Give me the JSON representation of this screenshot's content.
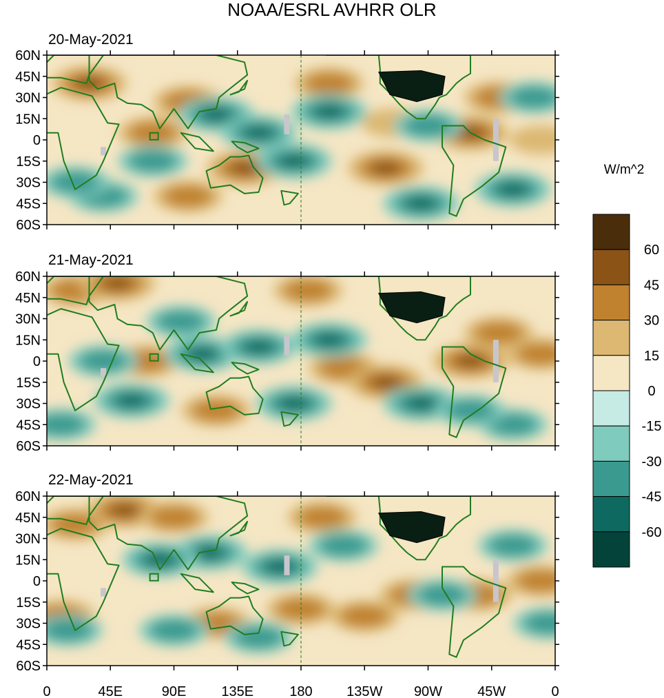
{
  "figure": {
    "title": "NOAA/ESRL AVHRR OLR",
    "units": "W/m^2"
  },
  "panels": [
    {
      "date": "20-May-2021"
    },
    {
      "date": "21-May-2021"
    },
    {
      "date": "22-May-2021"
    }
  ],
  "lat_ticks": [
    {
      "lat": 60,
      "label": "60N"
    },
    {
      "lat": 45,
      "label": "45N"
    },
    {
      "lat": 30,
      "label": "30N"
    },
    {
      "lat": 15,
      "label": "15N"
    },
    {
      "lat": 0,
      "label": "0"
    },
    {
      "lat": -15,
      "label": "15S"
    },
    {
      "lat": -30,
      "label": "30S"
    },
    {
      "lat": -45,
      "label": "45S"
    },
    {
      "lat": -60,
      "label": "60S"
    }
  ],
  "lon_ticks": [
    {
      "lon": 0,
      "label": "0"
    },
    {
      "lon": 45,
      "label": "45E"
    },
    {
      "lon": 90,
      "label": "90E"
    },
    {
      "lon": 135,
      "label": "135E"
    },
    {
      "lon": 180,
      "label": "180"
    },
    {
      "lon": 225,
      "label": "135W"
    },
    {
      "lon": 270,
      "label": "90W"
    },
    {
      "lon": 315,
      "label": "45W"
    },
    {
      "lon": 360,
      "label": "0"
    }
  ],
  "colorbar": {
    "colors": [
      "#4a2e0c",
      "#8c5316",
      "#c0822f",
      "#dcb872",
      "#f5e6c4",
      "#c6ebe4",
      "#7fcbbd",
      "#3a9a90",
      "#0e6a60",
      "#04433a"
    ],
    "labels": [
      "60",
      "45",
      "30",
      "15",
      "0",
      "-15",
      "-30",
      "-45",
      "-60"
    ]
  },
  "colors": {
    "coast": "#1e7d1e",
    "missing": "#c8c6cc",
    "background": "#f5e6c4"
  },
  "anomalies": [
    [
      {
        "lon": 30,
        "lat": 40,
        "v": 3
      },
      {
        "lon": 100,
        "lat": 27,
        "v": 2
      },
      {
        "lon": 140,
        "lat": -20,
        "v": 3
      },
      {
        "lon": 240,
        "lat": -20,
        "v": 3
      },
      {
        "lon": 300,
        "lat": 5,
        "v": 3
      },
      {
        "lon": 320,
        "lat": 30,
        "v": 2
      },
      {
        "lon": 75,
        "lat": 5,
        "v": 2
      },
      {
        "lon": 200,
        "lat": 40,
        "v": 2
      },
      {
        "lon": 350,
        "lat": 0,
        "v": 1
      },
      {
        "lon": 100,
        "lat": -40,
        "v": 2
      },
      {
        "lon": 245,
        "lat": 12,
        "v": 1
      },
      {
        "lon": 200,
        "lat": 20,
        "v": -3
      },
      {
        "lon": 120,
        "lat": 18,
        "v": -3
      },
      {
        "lon": 150,
        "lat": 5,
        "v": -3
      },
      {
        "lon": 175,
        "lat": -15,
        "v": -3
      },
      {
        "lon": 265,
        "lat": -45,
        "v": -3
      },
      {
        "lon": 330,
        "lat": -35,
        "v": -3
      },
      {
        "lon": 40,
        "lat": -40,
        "v": -2
      },
      {
        "lon": 20,
        "lat": -30,
        "v": -2
      },
      {
        "lon": 270,
        "lat": 10,
        "v": -2
      },
      {
        "lon": 345,
        "lat": 30,
        "v": -2
      },
      {
        "lon": 75,
        "lat": -15,
        "v": -2
      }
    ],
    [
      {
        "lon": 20,
        "lat": 50,
        "v": 2
      },
      {
        "lon": 50,
        "lat": 55,
        "v": 3
      },
      {
        "lon": 210,
        "lat": -5,
        "v": 2
      },
      {
        "lon": 240,
        "lat": -15,
        "v": 3
      },
      {
        "lon": 300,
        "lat": 0,
        "v": 3
      },
      {
        "lon": 320,
        "lat": 20,
        "v": 2
      },
      {
        "lon": 70,
        "lat": 0,
        "v": 2
      },
      {
        "lon": 185,
        "lat": 50,
        "v": 2
      },
      {
        "lon": 350,
        "lat": 5,
        "v": 2
      },
      {
        "lon": 120,
        "lat": -35,
        "v": 2
      },
      {
        "lon": 200,
        "lat": 15,
        "v": -3
      },
      {
        "lon": 110,
        "lat": 5,
        "v": -3
      },
      {
        "lon": 150,
        "lat": 10,
        "v": -3
      },
      {
        "lon": 175,
        "lat": -30,
        "v": -3
      },
      {
        "lon": 265,
        "lat": -30,
        "v": -3
      },
      {
        "lon": 330,
        "lat": -45,
        "v": -2
      },
      {
        "lon": 60,
        "lat": -28,
        "v": -3
      },
      {
        "lon": 40,
        "lat": 0,
        "v": -2
      },
      {
        "lon": 300,
        "lat": -35,
        "v": -2
      },
      {
        "lon": 10,
        "lat": -45,
        "v": -2
      },
      {
        "lon": 95,
        "lat": 28,
        "v": -2
      }
    ],
    [
      {
        "lon": 20,
        "lat": 40,
        "v": 2
      },
      {
        "lon": 55,
        "lat": 50,
        "v": 3
      },
      {
        "lon": 225,
        "lat": -25,
        "v": 2
      },
      {
        "lon": 260,
        "lat": -10,
        "v": 2
      },
      {
        "lon": 305,
        "lat": -10,
        "v": 2
      },
      {
        "lon": 90,
        "lat": 45,
        "v": 2
      },
      {
        "lon": 120,
        "lat": -30,
        "v": 2
      },
      {
        "lon": 195,
        "lat": 45,
        "v": 2
      },
      {
        "lon": 10,
        "lat": -25,
        "v": 2
      },
      {
        "lon": 350,
        "lat": 0,
        "v": 2
      },
      {
        "lon": 180,
        "lat": -20,
        "v": 2
      },
      {
        "lon": 165,
        "lat": 10,
        "v": -3
      },
      {
        "lon": 115,
        "lat": 20,
        "v": -3
      },
      {
        "lon": 210,
        "lat": 25,
        "v": -2
      },
      {
        "lon": 80,
        "lat": 15,
        "v": -3
      },
      {
        "lon": 90,
        "lat": -35,
        "v": -2
      },
      {
        "lon": 280,
        "lat": -10,
        "v": -2
      },
      {
        "lon": 330,
        "lat": 25,
        "v": -2
      },
      {
        "lon": 150,
        "lat": -40,
        "v": -2
      },
      {
        "lon": 15,
        "lat": -35,
        "v": -2
      },
      {
        "lon": 355,
        "lat": -30,
        "v": -2
      }
    ]
  ]
}
